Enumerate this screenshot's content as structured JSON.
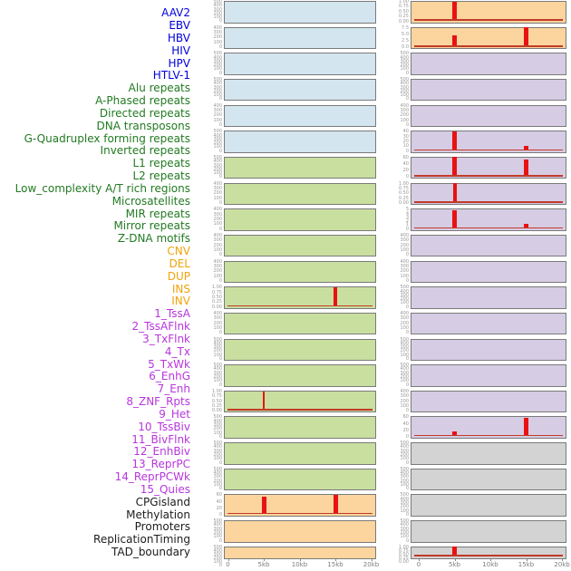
{
  "chart_data": {
    "type": "bar",
    "title": "",
    "x_axis": {
      "ticks": [
        "0",
        "5kb",
        "10kb",
        "15kb",
        "20kb"
      ],
      "unit": "kb",
      "range": [
        0,
        20
      ]
    },
    "legend_position": "none",
    "grid": false,
    "categories": {
      "virus": {
        "label_color": "#0000dd",
        "panel_color": "#d3e5ef"
      },
      "repeats": {
        "label_color": "#217a21",
        "panel_color": "#c9dfa0"
      },
      "structural_variant": {
        "label_color": "#f0a30a",
        "panel_color": "#fcd59e"
      },
      "chromatin_state": {
        "label_color": "#b835dc",
        "panel_color": "#d6cce3"
      },
      "other": {
        "label_color": "#1c1c1c",
        "panel_color": "#d3d3d3"
      }
    },
    "tracks": [
      {
        "name": "AAV2",
        "category": "virus",
        "column": "left",
        "row": 0,
        "yticks": [
          "500",
          "400",
          "300",
          "200",
          "100",
          "0"
        ],
        "ylim": 525,
        "spikes": [],
        "baseline": false
      },
      {
        "name": "EBV",
        "category": "virus",
        "column": "left",
        "row": 1,
        "yticks": [
          "400",
          "300",
          "200",
          "100",
          "0"
        ],
        "ylim": 420,
        "spikes": [],
        "baseline": false
      },
      {
        "name": "HBV",
        "category": "virus",
        "column": "left",
        "row": 2,
        "yticks": [
          "500",
          "400",
          "300",
          "200",
          "100",
          "0"
        ],
        "ylim": 525,
        "spikes": [],
        "baseline": false
      },
      {
        "name": "HIV",
        "category": "virus",
        "column": "left",
        "row": 3,
        "yticks": [
          "500",
          "400",
          "300",
          "200",
          "100",
          "0"
        ],
        "ylim": 525,
        "spikes": [],
        "baseline": false
      },
      {
        "name": "HPV",
        "category": "virus",
        "column": "left",
        "row": 4,
        "yticks": [
          "400",
          "300",
          "200",
          "100",
          "0"
        ],
        "ylim": 420,
        "spikes": [],
        "baseline": false
      },
      {
        "name": "HTLV-1",
        "category": "virus",
        "column": "left",
        "row": 5,
        "yticks": [
          "500",
          "400",
          "300",
          "200",
          "100",
          "0"
        ],
        "ylim": 525,
        "spikes": [],
        "baseline": false
      },
      {
        "name": "Alu repeats",
        "category": "repeats",
        "column": "left",
        "row": 6,
        "yticks": [
          "500",
          "400",
          "300",
          "200",
          "100",
          "0"
        ],
        "ylim": 525,
        "spikes": [],
        "baseline": false
      },
      {
        "name": "A-Phased repeats",
        "category": "repeats",
        "column": "left",
        "row": 7,
        "yticks": [
          "400",
          "300",
          "200",
          "100",
          "0"
        ],
        "ylim": 420,
        "spikes": [],
        "baseline": false
      },
      {
        "name": "Directed repeats",
        "category": "repeats",
        "column": "left",
        "row": 8,
        "yticks": [
          "400",
          "300",
          "200",
          "100",
          "0"
        ],
        "ylim": 420,
        "spikes": [],
        "baseline": false
      },
      {
        "name": "DNA transposons",
        "category": "repeats",
        "column": "left",
        "row": 9,
        "yticks": [
          "400",
          "300",
          "200",
          "100",
          "0"
        ],
        "ylim": 420,
        "spikes": [],
        "baseline": false
      },
      {
        "name": "G-Quadruplex forming repeats",
        "category": "repeats",
        "column": "left",
        "row": 10,
        "yticks": [
          "400",
          "300",
          "200",
          "100",
          "0"
        ],
        "ylim": 420,
        "spikes": [],
        "baseline": false
      },
      {
        "name": "Inverted repeats",
        "category": "repeats",
        "column": "left",
        "row": 11,
        "yticks": [
          "1.00",
          "0.75",
          "0.50",
          "0.25",
          "0.00"
        ],
        "ylim": 1.0,
        "spikes": [
          {
            "x_kb": 15,
            "value": 1.0,
            "width": 4
          }
        ],
        "baseline": true
      },
      {
        "name": "L1 repeats",
        "category": "repeats",
        "column": "left",
        "row": 12,
        "yticks": [
          "400",
          "300",
          "200",
          "100",
          "0"
        ],
        "ylim": 420,
        "spikes": [],
        "baseline": false
      },
      {
        "name": "L2 repeats",
        "category": "repeats",
        "column": "left",
        "row": 13,
        "yticks": [
          "500",
          "400",
          "300",
          "200",
          "100",
          "0"
        ],
        "ylim": 525,
        "spikes": [],
        "baseline": false
      },
      {
        "name": "Low_complexity A/T rich regions",
        "category": "repeats",
        "column": "left",
        "row": 14,
        "yticks": [
          "500",
          "400",
          "300",
          "200",
          "100",
          "0"
        ],
        "ylim": 525,
        "spikes": [],
        "baseline": false
      },
      {
        "name": "Microsatellites",
        "category": "repeats",
        "column": "left",
        "row": 15,
        "yticks": [
          "1.00",
          "0.75",
          "0.50",
          "0.25",
          "0.00"
        ],
        "ylim": 1.0,
        "spikes": [
          {
            "x_kb": 5,
            "value": 0.96,
            "width": 2
          }
        ],
        "baseline": true
      },
      {
        "name": "MIR repeats",
        "category": "repeats",
        "column": "left",
        "row": 16,
        "yticks": [
          "500",
          "400",
          "300",
          "200",
          "100",
          "0"
        ],
        "ylim": 525,
        "spikes": [],
        "baseline": false
      },
      {
        "name": "Mirror repeats",
        "category": "repeats",
        "column": "left",
        "row": 17,
        "yticks": [
          "500",
          "400",
          "300",
          "200",
          "100",
          "0"
        ],
        "ylim": 525,
        "spikes": [],
        "baseline": false
      },
      {
        "name": "Z-DNA motifs",
        "category": "repeats",
        "column": "left",
        "row": 18,
        "yticks": [
          "500",
          "400",
          "300",
          "200",
          "100",
          "0"
        ],
        "ylim": 525,
        "spikes": [],
        "baseline": false
      },
      {
        "name": "CNV",
        "category": "structural_variant",
        "column": "left",
        "row": 19,
        "yticks": [
          "60",
          "40",
          "20",
          "0"
        ],
        "ylim": 66,
        "spikes": [
          {
            "x_kb": 5,
            "value": 58,
            "width": 5
          },
          {
            "x_kb": 15,
            "value": 66,
            "width": 5
          }
        ],
        "baseline": true
      },
      {
        "name": "DEL",
        "category": "structural_variant",
        "column": "left",
        "row": 20,
        "yticks": [
          "500",
          "400",
          "300",
          "200",
          "100",
          "0"
        ],
        "ylim": 525,
        "spikes": [],
        "baseline": false
      },
      {
        "name": "DUP",
        "category": "structural_variant",
        "column": "left",
        "row": 21,
        "yticks": [
          "500",
          "400",
          "300",
          "200",
          "100",
          "0"
        ],
        "ylim": 525,
        "spikes": [],
        "baseline": false
      },
      {
        "name": "INS",
        "category": "structural_variant",
        "column": "right",
        "row": 0,
        "yticks": [
          "1.00",
          "0.75",
          "0.50",
          "0.25",
          "0.00"
        ],
        "ylim": 1.0,
        "spikes": [
          {
            "x_kb": 5,
            "value": 1.0,
            "width": 5
          }
        ],
        "baseline": true
      },
      {
        "name": "INV",
        "category": "structural_variant",
        "column": "right",
        "row": 1,
        "yticks": [
          "7.5",
          "5.0",
          "2.5",
          "0.0"
        ],
        "ylim": 8.6,
        "spikes": [
          {
            "x_kb": 5,
            "value": 5.0,
            "width": 5
          },
          {
            "x_kb": 15,
            "value": 8.6,
            "width": 5
          }
        ],
        "baseline": true
      },
      {
        "name": "1_TssA",
        "category": "chromatin_state",
        "column": "right",
        "row": 2,
        "yticks": [
          "500",
          "400",
          "300",
          "200",
          "100",
          "0"
        ],
        "ylim": 525,
        "spikes": [],
        "baseline": false
      },
      {
        "name": "2_TssAFlnk",
        "category": "chromatin_state",
        "column": "right",
        "row": 3,
        "yticks": [
          "500",
          "400",
          "300",
          "200",
          "100",
          "0"
        ],
        "ylim": 525,
        "spikes": [],
        "baseline": false
      },
      {
        "name": "3_TxFlnk",
        "category": "chromatin_state",
        "column": "right",
        "row": 4,
        "yticks": [
          "400",
          "300",
          "200",
          "100",
          "0"
        ],
        "ylim": 420,
        "spikes": [],
        "baseline": false
      },
      {
        "name": "4_Tx",
        "category": "chromatin_state",
        "column": "right",
        "row": 5,
        "yticks": [
          "40",
          "30",
          "20",
          "10",
          "0"
        ],
        "ylim": 43,
        "spikes": [
          {
            "x_kb": 5,
            "value": 43,
            "width": 5
          },
          {
            "x_kb": 15,
            "value": 10,
            "width": 5
          }
        ],
        "baseline": true
      },
      {
        "name": "5_TxWk",
        "category": "chromatin_state",
        "column": "right",
        "row": 6,
        "yticks": [
          "60",
          "40",
          "20",
          "0"
        ],
        "ylim": 67,
        "spikes": [
          {
            "x_kb": 5,
            "value": 67,
            "width": 5
          },
          {
            "x_kb": 15,
            "value": 60,
            "width": 5
          }
        ],
        "baseline": true
      },
      {
        "name": "6_EnhG",
        "category": "chromatin_state",
        "column": "right",
        "row": 7,
        "yticks": [
          "1.00",
          "0.75",
          "0.50",
          "0.25",
          "0.00"
        ],
        "ylim": 1.0,
        "spikes": [
          {
            "x_kb": 5,
            "value": 1.0,
            "width": 4
          }
        ],
        "baseline": true
      },
      {
        "name": "7_Enh",
        "category": "chromatin_state",
        "column": "right",
        "row": 8,
        "yticks": [
          "5",
          "4",
          "3",
          "2",
          "1",
          "0"
        ],
        "ylim": 5.2,
        "spikes": [
          {
            "x_kb": 5,
            "value": 4.9,
            "width": 5
          },
          {
            "x_kb": 15,
            "value": 1.0,
            "width": 5
          }
        ],
        "baseline": true
      },
      {
        "name": "8_ZNF_Rpts",
        "category": "chromatin_state",
        "column": "right",
        "row": 9,
        "yticks": [
          "400",
          "300",
          "200",
          "100",
          "0"
        ],
        "ylim": 420,
        "spikes": [],
        "baseline": false
      },
      {
        "name": "9_Het",
        "category": "chromatin_state",
        "column": "right",
        "row": 10,
        "yticks": [
          "400",
          "300",
          "200",
          "100",
          "0"
        ],
        "ylim": 420,
        "spikes": [],
        "baseline": false
      },
      {
        "name": "10_TssBiv",
        "category": "chromatin_state",
        "column": "right",
        "row": 11,
        "yticks": [
          "500",
          "400",
          "300",
          "200",
          "100",
          "0"
        ],
        "ylim": 525,
        "spikes": [],
        "baseline": false
      },
      {
        "name": "11_BivFlnk",
        "category": "chromatin_state",
        "column": "right",
        "row": 12,
        "yticks": [
          "400",
          "300",
          "200",
          "100",
          "0"
        ],
        "ylim": 420,
        "spikes": [],
        "baseline": false
      },
      {
        "name": "12_EnhBiv",
        "category": "chromatin_state",
        "column": "right",
        "row": 13,
        "yticks": [
          "500",
          "400",
          "300",
          "200",
          "100",
          "0"
        ],
        "ylim": 525,
        "spikes": [],
        "baseline": false
      },
      {
        "name": "13_ReprPC",
        "category": "chromatin_state",
        "column": "right",
        "row": 14,
        "yticks": [
          "500",
          "400",
          "300",
          "200",
          "100",
          "0"
        ],
        "ylim": 525,
        "spikes": [],
        "baseline": false
      },
      {
        "name": "14_ReprPCWk",
        "category": "chromatin_state",
        "column": "right",
        "row": 15,
        "yticks": [
          "400",
          "300",
          "200",
          "100",
          "0"
        ],
        "ylim": 420,
        "spikes": [],
        "baseline": false
      },
      {
        "name": "15_Quies",
        "category": "chromatin_state",
        "column": "right",
        "row": 16,
        "yticks": [
          "60",
          "40",
          "20",
          "0"
        ],
        "ylim": 64,
        "spikes": [
          {
            "x_kb": 5,
            "value": 14,
            "width": 5
          },
          {
            "x_kb": 15,
            "value": 60,
            "width": 5
          }
        ],
        "baseline": true
      },
      {
        "name": "CPGisland",
        "category": "other",
        "column": "right",
        "row": 17,
        "yticks": [
          "500",
          "400",
          "300",
          "200",
          "100",
          "0"
        ],
        "ylim": 525,
        "spikes": [],
        "baseline": false
      },
      {
        "name": "Methylation",
        "category": "other",
        "column": "right",
        "row": 18,
        "yticks": [
          "500",
          "400",
          "300",
          "200",
          "100",
          "0"
        ],
        "ylim": 525,
        "spikes": [],
        "baseline": false
      },
      {
        "name": "Promoters",
        "category": "other",
        "column": "right",
        "row": 19,
        "yticks": [
          "500",
          "400",
          "300",
          "200",
          "100",
          "0"
        ],
        "ylim": 525,
        "spikes": [],
        "baseline": false
      },
      {
        "name": "ReplicationTiming",
        "category": "other",
        "column": "right",
        "row": 20,
        "yticks": [
          "500",
          "400",
          "300",
          "200",
          "100",
          "0"
        ],
        "ylim": 525,
        "spikes": [],
        "baseline": false
      },
      {
        "name": "TAD_boundary",
        "category": "other",
        "column": "right",
        "row": 21,
        "yticks": [
          "1.00",
          "0.75",
          "0.50",
          "0.25",
          "0.00"
        ],
        "ylim": 1.0,
        "spikes": [
          {
            "x_kb": 5,
            "value": 1.0,
            "width": 5
          }
        ],
        "baseline": true
      }
    ]
  },
  "colors": {
    "background": "#ffffff",
    "spike_red": "#e81212",
    "baseline_red": "#c23a28",
    "panel_border": "#7a7a7a",
    "ytick_text": "#989898",
    "xtick_text": "#7d7d7d"
  }
}
